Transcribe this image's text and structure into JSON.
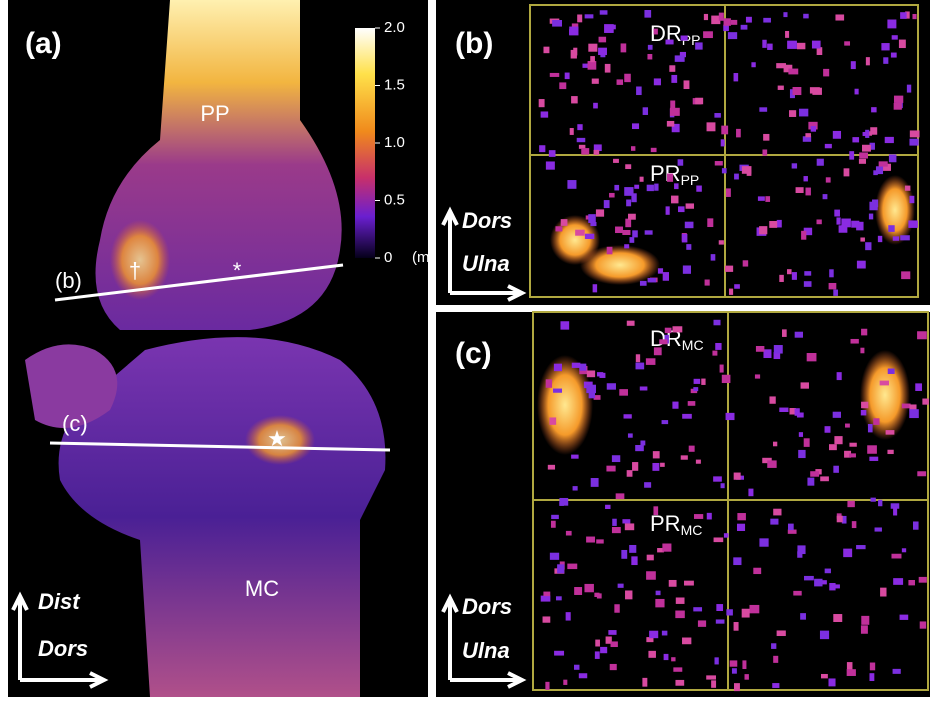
{
  "panel_a": {
    "label": "(a)",
    "bone_labels": [
      "PP",
      "MC"
    ],
    "section_labels": [
      "(b)",
      "(c)"
    ],
    "markers": [
      "†",
      "*",
      "★"
    ],
    "colorbar": {
      "range": [
        0,
        2
      ],
      "ticks": [
        {
          "value": 2,
          "label": "2.0"
        },
        {
          "value": 1.5,
          "label": "1.5"
        },
        {
          "value": 1,
          "label": "1.0"
        },
        {
          "value": 0.5,
          "label": "0.5"
        },
        0
      ],
      "unit": "(mm)"
    },
    "axes": [
      "Dist",
      "Dors"
    ]
  },
  "panel_b": {
    "label": "(b)",
    "regions": [
      {
        "main": "DR",
        "sub": "PP"
      },
      {
        "main": "PR",
        "sub": "PP"
      }
    ],
    "axes": [
      "Dors",
      "Ulna"
    ]
  },
  "panel_c": {
    "label": "(c)",
    "regions": [
      {
        "main": "DR",
        "sub": "MC"
      },
      {
        "main": "PR",
        "sub": "MC"
      }
    ],
    "axes": [
      "Dors",
      "Ulna"
    ]
  }
}
